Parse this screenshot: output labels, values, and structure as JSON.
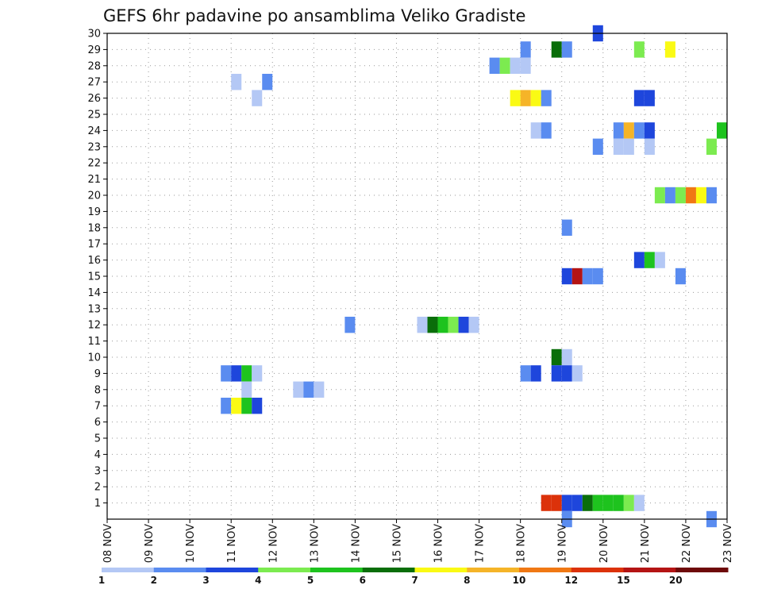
{
  "chart_data": {
    "type": "heatmap",
    "title": "GEFS 6hr padavine po ansamblima Veliko Gradiste",
    "x_tick_labels": [
      "08 NOV",
      "09 NOV",
      "10 NOV",
      "11 NOV",
      "12 NOV",
      "13 NOV",
      "14 NOV",
      "15 NOV",
      "16 NOV",
      "17 NOV",
      "18 NOV",
      "19 NOV",
      "20 NOV",
      "21 NOV",
      "22 NOV",
      "23 NOV"
    ],
    "y_tick_labels": [
      "1",
      "2",
      "3",
      "4",
      "5",
      "6",
      "7",
      "8",
      "9",
      "10",
      "11",
      "12",
      "13",
      "14",
      "15",
      "16",
      "17",
      "18",
      "19",
      "20",
      "21",
      "22",
      "23",
      "24",
      "25",
      "26",
      "27",
      "28",
      "29",
      "30"
    ],
    "xlim_days": [
      0,
      15
    ],
    "ylim": [
      0,
      30
    ],
    "grid": true,
    "legend": {
      "placement": "bottom",
      "labels": [
        "1",
        "2",
        "3",
        "4",
        "5",
        "6",
        "7",
        "8",
        "10",
        "12",
        "15",
        "20"
      ],
      "colors": [
        "#b4c8f5",
        "#5a8cf0",
        "#1e46dc",
        "#7ceb50",
        "#1ec31e",
        "#0a6e0a",
        "#fafa14",
        "#f5b428",
        "#f07814",
        "#dc320a",
        "#b41414",
        "#6e0a0a"
      ]
    },
    "cells": [
      {
        "m": 30,
        "t": 11.75,
        "c": 3
      },
      {
        "m": 29,
        "t": 10,
        "c": 2
      },
      {
        "m": 29,
        "t": 10.75,
        "c": 6
      },
      {
        "m": 29,
        "t": 11,
        "c": 2
      },
      {
        "m": 29,
        "t": 12.75,
        "c": 4
      },
      {
        "m": 29,
        "t": 13.5,
        "c": 7
      },
      {
        "m": 28,
        "t": 9.25,
        "c": 2
      },
      {
        "m": 28,
        "t": 9.5,
        "c": 4
      },
      {
        "m": 28,
        "t": 9.75,
        "c": 1
      },
      {
        "m": 28,
        "t": 10,
        "c": 1
      },
      {
        "m": 27,
        "t": 3,
        "c": 1
      },
      {
        "m": 27,
        "t": 3.75,
        "c": 2
      },
      {
        "m": 26,
        "t": 3.5,
        "c": 1
      },
      {
        "m": 26,
        "t": 9.75,
        "c": 7
      },
      {
        "m": 26,
        "t": 10,
        "c": 8
      },
      {
        "m": 26,
        "t": 10.25,
        "c": 7
      },
      {
        "m": 26,
        "t": 10.5,
        "c": 2
      },
      {
        "m": 26,
        "t": 12.75,
        "c": 3
      },
      {
        "m": 26,
        "t": 13,
        "c": 3
      },
      {
        "m": 24,
        "t": 10.25,
        "c": 1
      },
      {
        "m": 24,
        "t": 10.5,
        "c": 2
      },
      {
        "m": 24,
        "t": 12.25,
        "c": 2
      },
      {
        "m": 24,
        "t": 12.5,
        "c": 8
      },
      {
        "m": 24,
        "t": 12.75,
        "c": 2
      },
      {
        "m": 24,
        "t": 13,
        "c": 3
      },
      {
        "m": 24,
        "t": 14.75,
        "c": 5
      },
      {
        "m": 23,
        "t": 11.75,
        "c": 2
      },
      {
        "m": 23,
        "t": 12.25,
        "c": 1
      },
      {
        "m": 23,
        "t": 12.5,
        "c": 1
      },
      {
        "m": 23,
        "t": 13,
        "c": 1
      },
      {
        "m": 23,
        "t": 14.5,
        "c": 4
      },
      {
        "m": 20,
        "t": 13.25,
        "c": 4
      },
      {
        "m": 20,
        "t": 13.5,
        "c": 2
      },
      {
        "m": 20,
        "t": 13.75,
        "c": 4
      },
      {
        "m": 20,
        "t": 14,
        "c": 9
      },
      {
        "m": 20,
        "t": 14.25,
        "c": 7
      },
      {
        "m": 20,
        "t": 14.5,
        "c": 2
      },
      {
        "m": 18,
        "t": 11,
        "c": 2
      },
      {
        "m": 16,
        "t": 12.75,
        "c": 3
      },
      {
        "m": 16,
        "t": 13,
        "c": 5
      },
      {
        "m": 16,
        "t": 13.25,
        "c": 1
      },
      {
        "m": 15,
        "t": 11,
        "c": 3
      },
      {
        "m": 15,
        "t": 11.25,
        "c": 11
      },
      {
        "m": 15,
        "t": 11.5,
        "c": 2
      },
      {
        "m": 15,
        "t": 11.75,
        "c": 2
      },
      {
        "m": 15,
        "t": 13.75,
        "c": 2
      },
      {
        "m": 12,
        "t": 5.75,
        "c": 2
      },
      {
        "m": 12,
        "t": 7.5,
        "c": 1
      },
      {
        "m": 12,
        "t": 7.75,
        "c": 6
      },
      {
        "m": 12,
        "t": 8,
        "c": 5
      },
      {
        "m": 12,
        "t": 8.25,
        "c": 4
      },
      {
        "m": 12,
        "t": 8.5,
        "c": 3
      },
      {
        "m": 12,
        "t": 8.75,
        "c": 1
      },
      {
        "m": 10,
        "t": 10.75,
        "c": 6
      },
      {
        "m": 10,
        "t": 11,
        "c": 1
      },
      {
        "m": 9,
        "t": 2.75,
        "c": 2
      },
      {
        "m": 9,
        "t": 3,
        "c": 3
      },
      {
        "m": 9,
        "t": 3.25,
        "c": 5
      },
      {
        "m": 9,
        "t": 3.5,
        "c": 1
      },
      {
        "m": 9,
        "t": 10,
        "c": 2
      },
      {
        "m": 9,
        "t": 10.25,
        "c": 3
      },
      {
        "m": 9,
        "t": 10.75,
        "c": 3
      },
      {
        "m": 9,
        "t": 11,
        "c": 3
      },
      {
        "m": 9,
        "t": 11.25,
        "c": 1
      },
      {
        "m": 8,
        "t": 3.25,
        "c": 1
      },
      {
        "m": 8,
        "t": 4.5,
        "c": 1
      },
      {
        "m": 8,
        "t": 4.75,
        "c": 2
      },
      {
        "m": 8,
        "t": 5,
        "c": 1
      },
      {
        "m": 7,
        "t": 2.75,
        "c": 2
      },
      {
        "m": 7,
        "t": 3,
        "c": 7
      },
      {
        "m": 7,
        "t": 3.25,
        "c": 5
      },
      {
        "m": 7,
        "t": 3.5,
        "c": 3
      },
      {
        "m": 1,
        "t": 10.5,
        "c": 10
      },
      {
        "m": 1,
        "t": 10.75,
        "c": 10
      },
      {
        "m": 1,
        "t": 11,
        "c": 3
      },
      {
        "m": 1,
        "t": 11.25,
        "c": 3
      },
      {
        "m": 1,
        "t": 11.5,
        "c": 6
      },
      {
        "m": 1,
        "t": 11.75,
        "c": 5
      },
      {
        "m": 1,
        "t": 12,
        "c": 5
      },
      {
        "m": 1,
        "t": 12.25,
        "c": 5
      },
      {
        "m": 1,
        "t": 12.5,
        "c": 4
      },
      {
        "m": 1,
        "t": 12.75,
        "c": 1
      },
      {
        "m": 0,
        "t": 11,
        "c": 2
      },
      {
        "m": 0,
        "t": 14.5,
        "c": 2
      }
    ]
  }
}
